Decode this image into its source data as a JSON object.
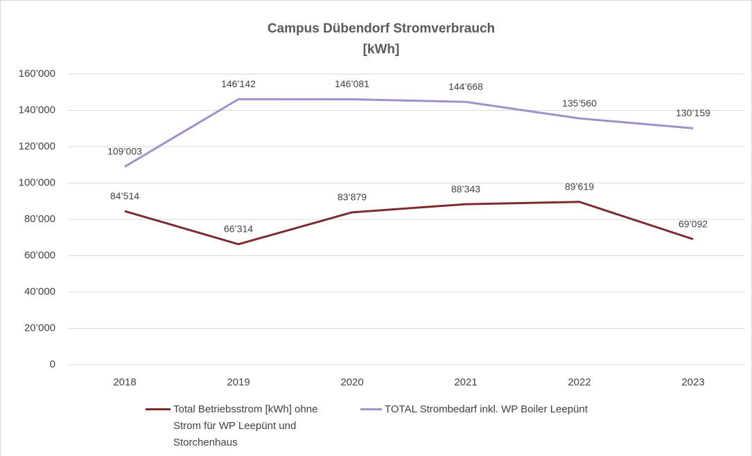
{
  "chart_data": {
    "type": "line",
    "title": [
      "Campus Dübendorf Stromverbrauch",
      "[kWh]"
    ],
    "categories": [
      "2018",
      "2019",
      "2020",
      "2021",
      "2022",
      "2023"
    ],
    "series": [
      {
        "name": "Total Betriebsstrom [kWh] ohne Strom für WP Leepünt und Storchenhaus",
        "color": "#7b2b2b",
        "values": [
          84514,
          66314,
          83879,
          88343,
          89619,
          69092
        ],
        "value_labels": [
          "84’514",
          "66’314",
          "83’879",
          "88’343",
          "89’619",
          "69’092"
        ]
      },
      {
        "name": "TOTAL Strombedarf inkl. WP Boiler Leepünt",
        "color": "#a18fc9",
        "values": [
          109003,
          146142,
          146081,
          144668,
          135560,
          130159
        ],
        "value_labels": [
          "109’003",
          "146’142",
          "146’081",
          "144’668",
          "135’560",
          "130’159"
        ]
      }
    ],
    "ylim": [
      0,
      160000
    ],
    "yticks": [
      0,
      {
        "value": 20000,
        "label": "20’000"
      },
      {
        "value": 40000,
        "label": "40’000"
      },
      {
        "value": 60000,
        "label": "60’000"
      },
      {
        "value": 80000,
        "label": "80’000"
      },
      {
        "value": 100000,
        "label": "100’000"
      },
      {
        "value": 120000,
        "label": "120’000"
      },
      {
        "value": 140000,
        "label": "140’000"
      },
      {
        "value": 160000,
        "label": "160’000"
      }
    ],
    "grid": true,
    "legend": "bottom"
  }
}
